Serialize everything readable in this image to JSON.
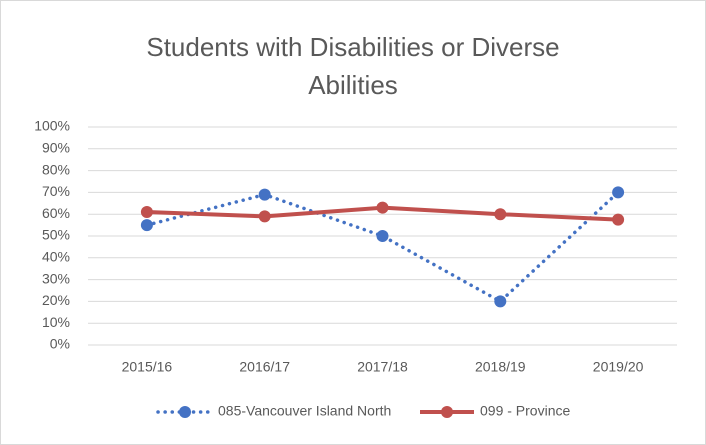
{
  "chart_data": {
    "type": "line",
    "title": "Students with Disabilities or Diverse Abilities",
    "categories": [
      "2015/16",
      "2016/17",
      "2017/18",
      "2018/19",
      "2019/20"
    ],
    "series": [
      {
        "name": "085-Vancouver Island North",
        "color": "#4472c4",
        "style": "dotted",
        "values": [
          55,
          69,
          50,
          20,
          70
        ]
      },
      {
        "name": "099 - Province",
        "color": "#c0504d",
        "style": "solid",
        "values": [
          61,
          59,
          63,
          60,
          57.5
        ]
      }
    ],
    "ylim": [
      0,
      100
    ],
    "yticks": [
      {
        "value": 0,
        "label": "0%"
      },
      {
        "value": 10,
        "label": "10%"
      },
      {
        "value": 20,
        "label": "20%"
      },
      {
        "value": 30,
        "label": "30%"
      },
      {
        "value": 40,
        "label": "40%"
      },
      {
        "value": 50,
        "label": "50%"
      },
      {
        "value": 60,
        "label": "60%"
      },
      {
        "value": 70,
        "label": "70%"
      },
      {
        "value": 80,
        "label": "80%"
      },
      {
        "value": 90,
        "label": "90%"
      },
      {
        "value": 100,
        "label": "100%"
      }
    ],
    "grid": true,
    "legend": "bottom"
  }
}
